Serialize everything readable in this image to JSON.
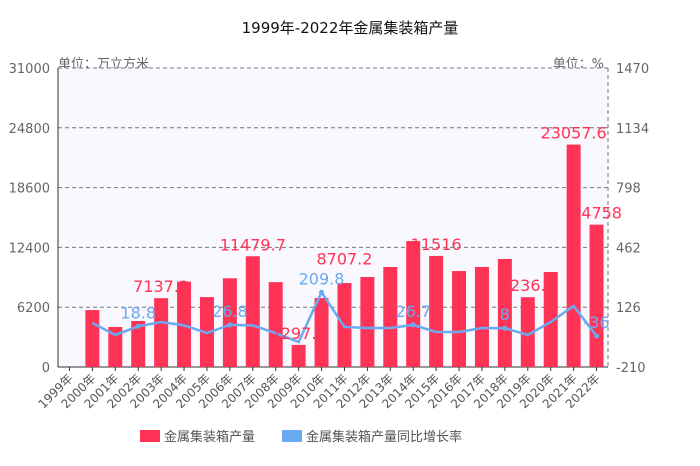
{
  "chart_data": {
    "type": "bar",
    "title": "1999年-2022年金属集装箱产量",
    "left_unit": "单位：万立方米",
    "right_unit": "单位：%",
    "categories": [
      "1999年",
      "2000年",
      "2001年",
      "2002年",
      "2003年",
      "2004年",
      "2005年",
      "2006年",
      "2007年",
      "2008年",
      "2009年",
      "2010年",
      "2011年",
      "2012年",
      "2013年",
      "2014年",
      "2015年",
      "2016年",
      "2017年",
      "2018年",
      "2019年",
      "2020年",
      "2021年",
      "2022年"
    ],
    "left_ticks": [
      "0",
      "6200",
      "12400",
      "18600",
      "24800",
      "31000"
    ],
    "right_ticks": [
      "-210",
      "126",
      "462",
      "798",
      "1134",
      "1470"
    ],
    "ylim": [
      0,
      31000
    ],
    "y2lim": [
      -210,
      1470
    ],
    "series": [
      {
        "name": "金属集装箱产量",
        "type": "bar",
        "color": "#ff3355",
        "values": [
          null,
          5900,
          4150,
          4770,
          7137.2,
          8850,
          7250,
          9200,
          11479.7,
          8800,
          2297.4,
          7150,
          8707.2,
          9330,
          10370,
          13060,
          11516,
          9950,
          10370,
          11200,
          7236.4,
          9850,
          23057.6,
          14758
        ],
        "labels": {
          "4": "7137.2",
          "8": "11479.7",
          "10": "2297.4",
          "12": "8707.2",
          "16": "11516",
          "20": "7236.4",
          "22": "23057.6",
          "23": "14758"
        }
      },
      {
        "name": "金属集装箱产量同比增长率",
        "type": "line",
        "color": "#6aaaf0",
        "values": [
          null,
          37,
          -30,
          18.8,
          43,
          24,
          -19,
          26.8,
          24,
          -20,
          -70,
          209.8,
          15,
          9,
          9,
          26.7,
          -13,
          -13,
          9,
          8,
          -30,
          43,
          133,
          -36
        ],
        "labels": {
          "3": "18.8",
          "7": "26.8",
          "11": "209.8",
          "15": "26.7",
          "19": "8",
          "23": "-36"
        }
      }
    ],
    "grid": true,
    "legend": "bottom"
  }
}
